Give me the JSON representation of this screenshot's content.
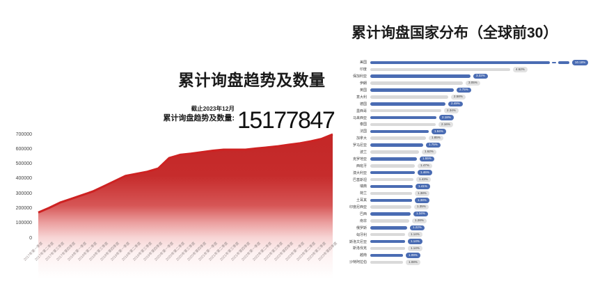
{
  "accent_colors": {
    "area_red": "#c42727",
    "area_line_red": "#ce2222",
    "bar_blue": "#4a6cb3",
    "bar_gray": "#d9d9d9"
  },
  "chart_data": [
    {
      "type": "area",
      "title": "累计询盘趋势及数量",
      "asof_label": "截止2023年12月",
      "total_label": "累计询盘趋势及数量:",
      "total_value": "15177847",
      "ylim": [
        0,
        700000
      ],
      "yticks": [
        700000,
        600000,
        500000,
        400000,
        300000,
        200000,
        100000,
        0
      ],
      "grid": false,
      "legend": "none",
      "x": [
        "2017年第一季度",
        "2017年第二季度",
        "2017年第三季度",
        "2017年第四季度",
        "2018年第一季度",
        "2018年第二季度",
        "2018年第三季度",
        "2018年第四季度",
        "2019年第一季度",
        "2019年第二季度",
        "2019年第三季度",
        "2019年第四季度",
        "2020年第一季度",
        "2020年第二季度",
        "2020年第三季度",
        "2020年第四季度",
        "2021年第一季度",
        "2021年第二季度",
        "2021年第三季度",
        "2021年第四季度",
        "2022年第一季度",
        "2022年第二季度",
        "2022年第三季度",
        "2022年第四季度",
        "2023年第一季度",
        "2023年第二季度",
        "2023年第三季度",
        "2023年第四季度"
      ],
      "values": [
        173000,
        205000,
        240000,
        265000,
        290000,
        315000,
        350000,
        385000,
        420000,
        434000,
        448000,
        470000,
        540000,
        562000,
        570000,
        580000,
        590000,
        597000,
        597000,
        597000,
        605000,
        612000,
        620000,
        630000,
        640000,
        653000,
        670000,
        700000
      ]
    },
    {
      "type": "bar",
      "orientation": "horizontal",
      "title": "累计询盘国家分布（全球前30）",
      "axis_break_on_first_bar": true,
      "categories": [
        "美国",
        "印度",
        "保加利亚",
        "伊朗",
        "英国",
        "意大利",
        "德国",
        "墨西哥",
        "马来西亚",
        "泰国",
        "法国",
        "加拿大",
        "罗马尼亚",
        "波兰",
        "克罗地亚",
        "西班牙",
        "澳大利亚",
        "巴基斯坦",
        "瑞典",
        "荷兰",
        "土耳其",
        "印度尼西亚",
        "巴西",
        "南非",
        "俄罗斯",
        "匈牙利",
        "斯洛文尼亚",
        "斯洛伐克",
        "越南",
        "沙特阿拉伯"
      ],
      "values": [
        10.18,
        4.62,
        3.32,
        3.05,
        2.75,
        2.58,
        2.49,
        2.34,
        2.18,
        2.16,
        1.94,
        1.85,
        1.75,
        1.62,
        1.55,
        1.47,
        1.46,
        1.43,
        1.41,
        1.38,
        1.38,
        1.35,
        1.34,
        1.28,
        1.22,
        1.14,
        1.14,
        1.14,
        1.09,
        1.08
      ],
      "labels": [
        "10.18%",
        "4.62%",
        "3.32%",
        "3.05%",
        "2.75%",
        "2.58%",
        "2.49%",
        "2.34%",
        "2.18%",
        "2.16%",
        "1.94%",
        "1.85%",
        "1.75%",
        "1.62%",
        "1.55%",
        "1.47%",
        "1.46%",
        "1.43%",
        "1.41%",
        "1.38%",
        "1.38%",
        "1.35%",
        "1.34%",
        "1.28%",
        "1.22%",
        "1.14%",
        "1.14%",
        "1.14%",
        "1.09%",
        "1.08%"
      ]
    }
  ]
}
